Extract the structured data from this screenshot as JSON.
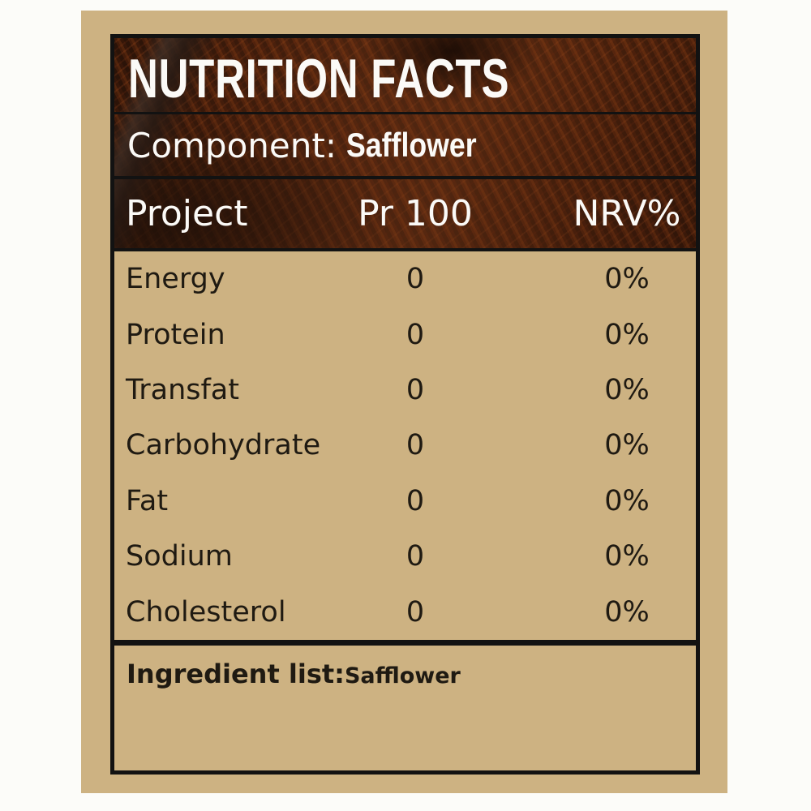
{
  "colors": {
    "page_background": "#fcfcf9",
    "panel_background": "#cdb282",
    "border_and_lines": "#121212",
    "body_text": "#1f1a12",
    "header_text": "#fbfaf7",
    "photo_tones": [
      "#2e1608",
      "#83401a",
      "#b85a20"
    ]
  },
  "header": {
    "title": "NUTRITION FACTS",
    "component_label": "Component:",
    "component_value": "Safflower"
  },
  "columns": {
    "project": "Project",
    "per": "Pr 100",
    "nrv": "NRV%"
  },
  "rows": [
    {
      "name": "Energy",
      "per": "0",
      "nrv": "0%"
    },
    {
      "name": "Protein",
      "per": "0",
      "nrv": "0%"
    },
    {
      "name": "Transfat",
      "per": "0",
      "nrv": "0%"
    },
    {
      "name": "Carbohydrate",
      "per": "0",
      "nrv": "0%"
    },
    {
      "name": "Fat",
      "per": "0",
      "nrv": "0%"
    },
    {
      "name": "Sodium",
      "per": "0",
      "nrv": "0%"
    },
    {
      "name": "Cholesterol",
      "per": "0",
      "nrv": "0%"
    }
  ],
  "ingredient": {
    "label": "Ingredient list:",
    "value": "Safflower"
  }
}
